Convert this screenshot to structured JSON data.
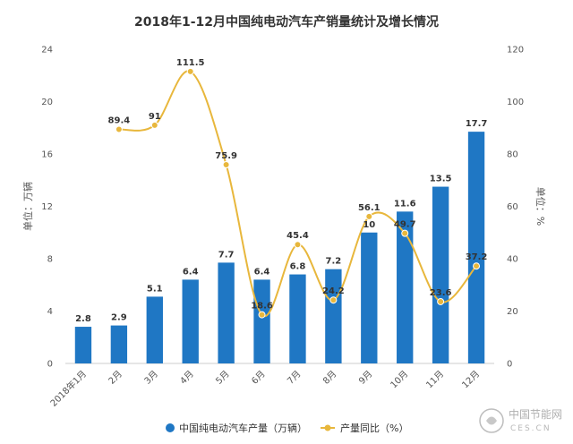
{
  "chart_data": {
    "type": "bar",
    "title": "2018年1-12月中国纯电动汽车产销量统计及增长情况",
    "categories": [
      "2018年1月",
      "2月",
      "3月",
      "4月",
      "5月",
      "6月",
      "7月",
      "8月",
      "9月",
      "10月",
      "11月",
      "12月"
    ],
    "series": [
      {
        "name": "中国纯电动汽车产量（万辆）",
        "type": "bar",
        "axis": "left",
        "values": [
          2.8,
          2.9,
          5.1,
          6.4,
          7.7,
          6.4,
          6.8,
          7.2,
          10,
          11.6,
          13.5,
          17.7
        ],
        "labels": [
          "2.8",
          "2.9",
          "5.1",
          "6.4",
          "7.7",
          "6.4",
          "6.8",
          "7.2",
          "10",
          "11.6",
          "13.5",
          "17.7"
        ]
      },
      {
        "name": "产量同比（%）",
        "type": "line",
        "axis": "right",
        "values": [
          null,
          89.4,
          91,
          111.5,
          75.9,
          18.6,
          45.4,
          24.2,
          56.1,
          49.7,
          23.6,
          37.2
        ],
        "labels": [
          "",
          "89.4",
          "91",
          "111.5",
          "75.9",
          "18.6",
          "45.4",
          "24.2",
          "56.1",
          "49.7",
          "23.6",
          "37.2"
        ]
      }
    ],
    "ylabel": "单位：万辆",
    "y2label": "单位：%",
    "ylim": [
      0,
      24
    ],
    "y2lim": [
      0,
      120
    ],
    "yticks": [
      "0",
      "4",
      "8",
      "12",
      "16",
      "20",
      "24"
    ],
    "y2ticks": [
      "0",
      "20",
      "40",
      "60",
      "80",
      "100",
      "120"
    ],
    "grid": false,
    "legend": "bottom",
    "colors": {
      "bar": "#1f77c4",
      "line": "#e8b73c"
    }
  },
  "watermark": {
    "text": "中国节能网",
    "sub": "CES.CN"
  }
}
